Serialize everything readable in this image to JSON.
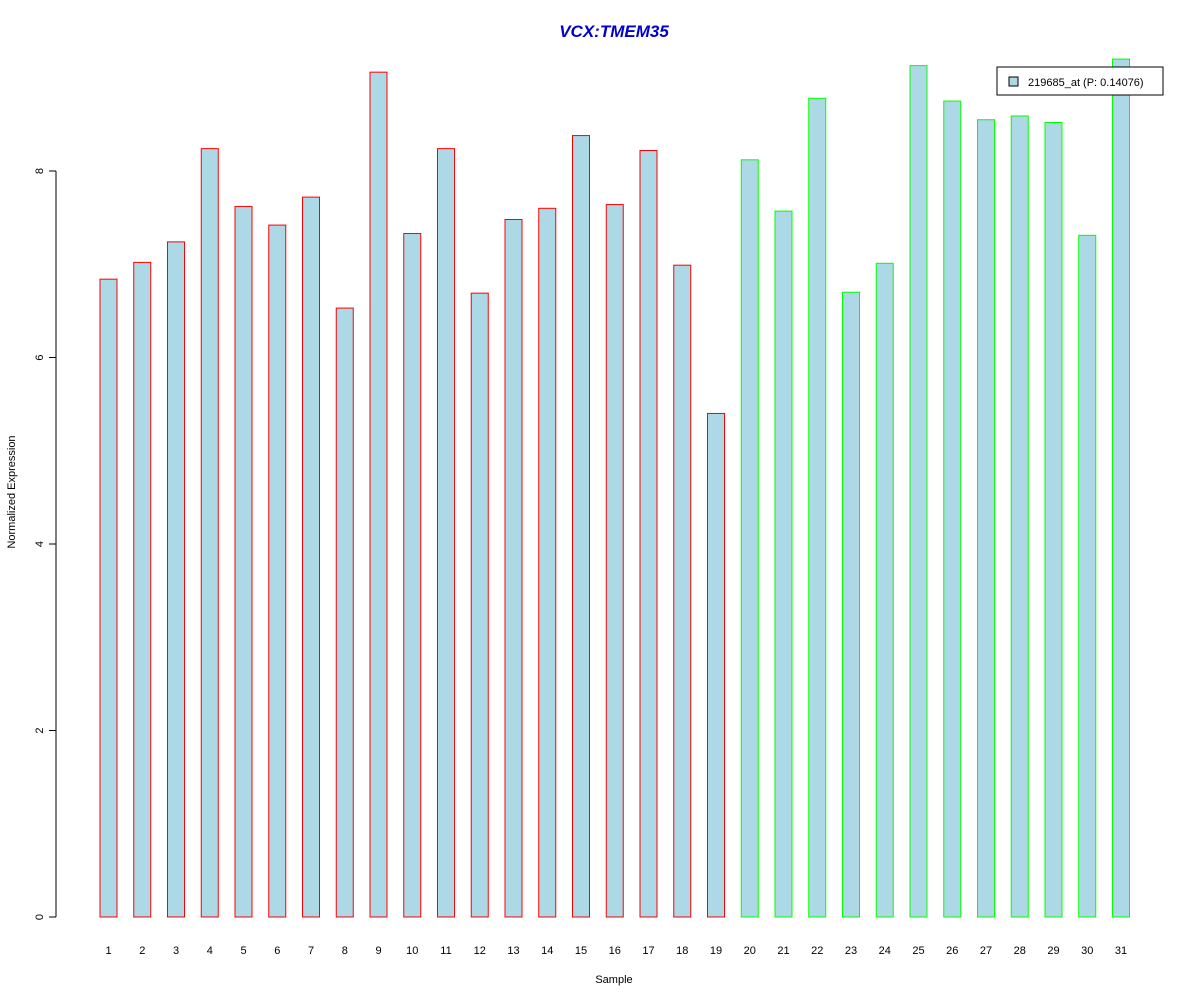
{
  "chart_data": {
    "type": "bar",
    "title": "VCX:TMEM35",
    "title_color": "#0000CD",
    "xlabel": "Sample",
    "ylabel": "Normalized Expression",
    "ylim": [
      0,
      9.2
    ],
    "yticks": [
      0,
      2,
      4,
      6,
      8
    ],
    "grid": false,
    "legend_position": "top-right",
    "fill_color": "#ADD8E6",
    "categories": [
      "1",
      "2",
      "3",
      "4",
      "5",
      "6",
      "7",
      "8",
      "9",
      "10",
      "11",
      "12",
      "13",
      "14",
      "15",
      "16",
      "17",
      "18",
      "19",
      "20",
      "21",
      "22",
      "23",
      "24",
      "25",
      "26",
      "27",
      "28",
      "29",
      "30",
      "31"
    ],
    "values": [
      6.84,
      7.02,
      7.24,
      8.24,
      7.62,
      7.42,
      7.72,
      6.53,
      9.06,
      7.33,
      8.24,
      6.69,
      7.48,
      7.6,
      8.38,
      7.64,
      8.22,
      6.99,
      5.4,
      8.12,
      7.57,
      8.78,
      6.7,
      7.01,
      9.13,
      8.75,
      8.55,
      8.59,
      8.52,
      7.31,
      9.2
    ],
    "border_colors": [
      "#FF0000",
      "#FF0000",
      "#FF0000",
      "#FF0000",
      "#FF0000",
      "#FF0000",
      "#FF0000",
      "#FF0000",
      "#FF0000",
      "#FF0000",
      "#FF0000",
      "#FF0000",
      "#FF0000",
      "#FF0000",
      "#FF0000",
      "#FF0000",
      "#FF0000",
      "#FF0000",
      "#FF0000",
      "#00FF00",
      "#00FF00",
      "#00FF00",
      "#00FF00",
      "#00FF00",
      "#00FF00",
      "#00FF00",
      "#00FF00",
      "#00FF00",
      "#00FF00",
      "#00FF00",
      "#00FF00"
    ],
    "series": [
      {
        "name": "219685_at (P: 0.14076)"
      }
    ]
  }
}
